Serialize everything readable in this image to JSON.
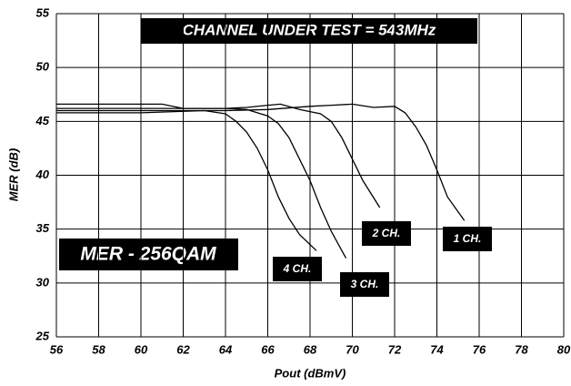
{
  "chart_data": {
    "type": "line",
    "title": "CHANNEL UNDER TEST = 543MHz",
    "annotation": "MER - 256QAM",
    "x_label": "Pout (dBmV)",
    "y_label": "MER (dB)",
    "xlim": [
      56,
      80
    ],
    "xticks": [
      56,
      58,
      60,
      62,
      64,
      66,
      68,
      70,
      72,
      74,
      76,
      78,
      80
    ],
    "ylim": [
      25,
      55
    ],
    "yticks": [
      25,
      30,
      35,
      40,
      45,
      50,
      55
    ],
    "grid": true,
    "series": [
      {
        "name": "1 CH.",
        "color": "#000000",
        "x": [
          56,
          60,
          64,
          66,
          68,
          69,
          70,
          71,
          72,
          72.5,
          73,
          73.5,
          74,
          74.5,
          75.3
        ],
        "values": [
          46.0,
          46.0,
          46.0,
          46.1,
          46.4,
          46.5,
          46.6,
          46.3,
          46.4,
          45.8,
          44.5,
          42.8,
          40.5,
          38,
          35.8
        ]
      },
      {
        "name": "2 CH.",
        "color": "#000000",
        "x": [
          56,
          60,
          64,
          65,
          66,
          66.6,
          67.5,
          68.5,
          69,
          69.5,
          70,
          70.5,
          71.3
        ],
        "values": [
          46.2,
          46.2,
          46.2,
          46.3,
          46.5,
          46.6,
          46.1,
          45.7,
          45,
          43.5,
          41.5,
          39.5,
          37
        ]
      },
      {
        "name": "3 CH.",
        "color": "#000000",
        "x": [
          56,
          61,
          62,
          64,
          65,
          66,
          66.5,
          67,
          67.5,
          68,
          68.5,
          69,
          69.7
        ],
        "values": [
          46.6,
          46.6,
          46.2,
          46.2,
          46.1,
          45.5,
          44.8,
          43.5,
          41.5,
          39.5,
          37,
          34.8,
          32.3
        ]
      },
      {
        "name": "4 CH.",
        "color": "#000000",
        "x": [
          56,
          60,
          63,
          64,
          64.5,
          65,
          65.5,
          66,
          66.5,
          67,
          67.5,
          68.3
        ],
        "values": [
          45.8,
          45.8,
          46.0,
          45.7,
          45,
          44,
          42.5,
          40.5,
          38,
          36,
          34.5,
          33
        ]
      }
    ]
  }
}
